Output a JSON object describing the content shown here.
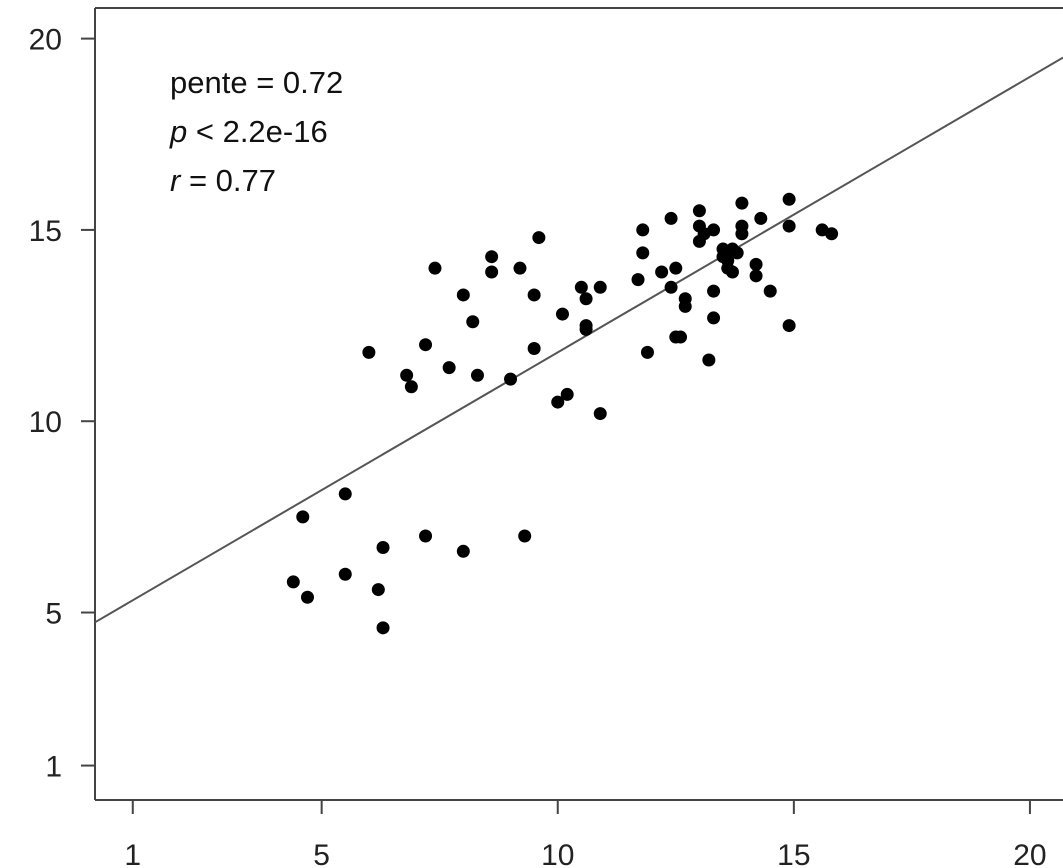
{
  "chart_data": {
    "type": "scatter",
    "title": "",
    "xlabel": "",
    "ylabel": "",
    "xlim": [
      0.2,
      20.7
    ],
    "ylim": [
      0.1,
      20.8
    ],
    "x_ticks": [
      1,
      5,
      10,
      15,
      20
    ],
    "y_ticks": [
      1,
      5,
      10,
      15,
      20
    ],
    "x_tick_labels": [
      "1",
      "5",
      "10",
      "15",
      "20"
    ],
    "y_tick_labels": [
      "1",
      "5",
      "10",
      "15",
      "20"
    ],
    "grid": false,
    "annotations": {
      "slope": {
        "prefix": "pente = 0.72"
      },
      "p": {
        "var": "p",
        "text": " < 2.2e-16"
      },
      "r": {
        "var": "r",
        "text": " = 0.77"
      }
    },
    "fit_line": {
      "slope": 0.72,
      "intercept": 4.6
    },
    "point_color": "#000000",
    "line_color": "#555555",
    "points": [
      [
        4.4,
        5.8
      ],
      [
        4.6,
        7.5
      ],
      [
        4.7,
        5.4
      ],
      [
        5.5,
        6.0
      ],
      [
        5.5,
        8.1
      ],
      [
        6.0,
        11.8
      ],
      [
        6.2,
        5.6
      ],
      [
        6.3,
        4.6
      ],
      [
        6.3,
        6.7
      ],
      [
        6.8,
        11.2
      ],
      [
        6.9,
        10.9
      ],
      [
        7.2,
        12.0
      ],
      [
        7.2,
        7.0
      ],
      [
        7.4,
        14.0
      ],
      [
        7.7,
        11.4
      ],
      [
        8.0,
        13.3
      ],
      [
        8.0,
        6.6
      ],
      [
        8.2,
        12.6
      ],
      [
        8.3,
        11.2
      ],
      [
        8.6,
        14.3
      ],
      [
        8.6,
        13.9
      ],
      [
        9.0,
        11.1
      ],
      [
        9.2,
        14.0
      ],
      [
        9.3,
        7.0
      ],
      [
        9.5,
        13.3
      ],
      [
        9.5,
        11.9
      ],
      [
        9.6,
        14.8
      ],
      [
        10.0,
        10.5
      ],
      [
        10.1,
        12.8
      ],
      [
        10.2,
        10.7
      ],
      [
        10.5,
        13.5
      ],
      [
        10.6,
        13.2
      ],
      [
        10.6,
        12.5
      ],
      [
        10.6,
        12.4
      ],
      [
        10.9,
        13.5
      ],
      [
        10.9,
        10.2
      ],
      [
        11.7,
        13.7
      ],
      [
        11.8,
        14.4
      ],
      [
        11.8,
        15.0
      ],
      [
        11.9,
        11.8
      ],
      [
        12.2,
        13.9
      ],
      [
        12.4,
        15.3
      ],
      [
        12.4,
        13.5
      ],
      [
        12.5,
        14.0
      ],
      [
        12.5,
        12.2
      ],
      [
        12.6,
        12.2
      ],
      [
        12.7,
        13.2
      ],
      [
        12.7,
        13.0
      ],
      [
        13.0,
        15.5
      ],
      [
        13.0,
        15.1
      ],
      [
        13.0,
        14.7
      ],
      [
        13.1,
        14.9
      ],
      [
        13.2,
        11.6
      ],
      [
        13.3,
        15.0
      ],
      [
        13.3,
        12.7
      ],
      [
        13.3,
        13.4
      ],
      [
        13.5,
        14.5
      ],
      [
        13.5,
        14.3
      ],
      [
        13.6,
        14.2
      ],
      [
        13.6,
        14.0
      ],
      [
        13.7,
        14.5
      ],
      [
        13.7,
        13.9
      ],
      [
        13.8,
        14.4
      ],
      [
        13.9,
        15.7
      ],
      [
        13.9,
        15.1
      ],
      [
        13.9,
        14.9
      ],
      [
        14.2,
        14.1
      ],
      [
        14.2,
        13.8
      ],
      [
        14.3,
        15.3
      ],
      [
        14.5,
        13.4
      ],
      [
        14.9,
        15.8
      ],
      [
        14.9,
        15.1
      ],
      [
        14.9,
        12.5
      ],
      [
        15.6,
        15.0
      ],
      [
        15.8,
        14.9
      ]
    ]
  }
}
